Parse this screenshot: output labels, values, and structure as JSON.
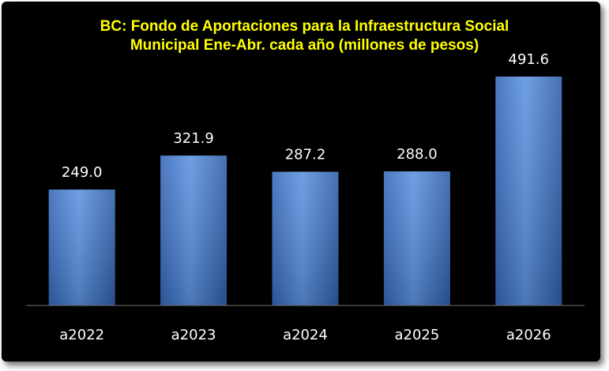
{
  "colors": {
    "background": "#000000",
    "title": "#ffff00",
    "bar": "#4a7fd0",
    "text": "#ffffff"
  },
  "chart_data": {
    "type": "bar",
    "title_line1": "BC: Fondo de Aportaciones para la Infraestructura Social",
    "title_line2": "Municipal Ene-Abr. cada año (millones de pesos)",
    "categories": [
      "a2022",
      "a2023",
      "a2024",
      "a2025",
      "a2026"
    ],
    "values": [
      249.0,
      321.9,
      287.2,
      288.0,
      491.6
    ],
    "value_labels": [
      "249.0",
      "321.9",
      "287.2",
      "288.0",
      "491.6"
    ],
    "ylim": [
      0,
      491.6
    ],
    "grid": false,
    "legend": "none"
  }
}
